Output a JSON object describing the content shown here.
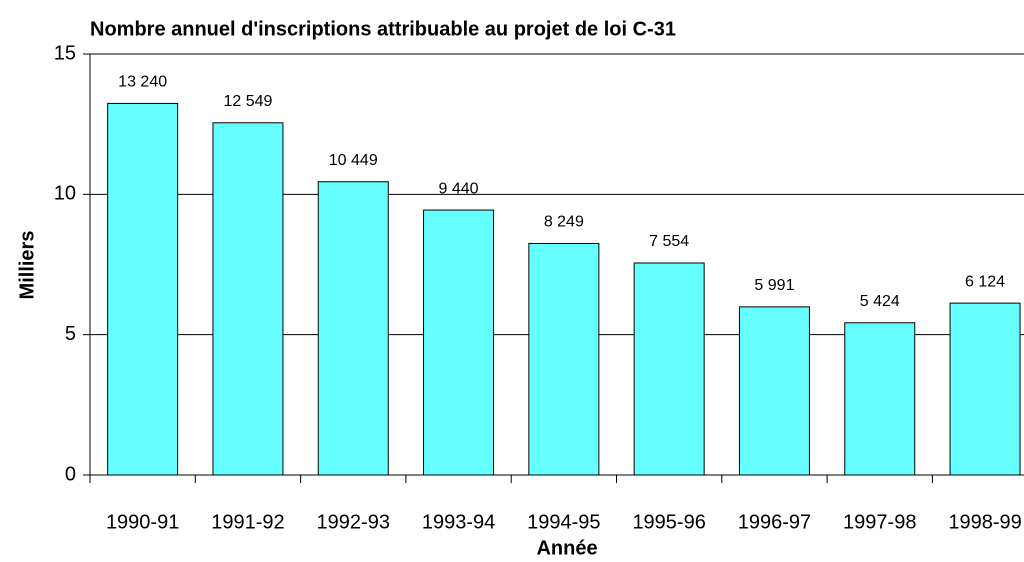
{
  "chart_data": {
    "type": "bar",
    "title": "Nombre annuel d'inscriptions attribuable au projet de loi C-31",
    "x_label": "Année",
    "y_label": "Milliers",
    "categories": [
      "1990-91",
      "1991-92",
      "1992-93",
      "1993-94",
      "1994-95",
      "1995-96",
      "1996-97",
      "1997-98",
      "1998-99"
    ],
    "values": [
      13.24,
      12.549,
      10.449,
      9.44,
      8.249,
      7.554,
      5.991,
      5.424,
      6.124
    ],
    "value_labels": [
      "13 240",
      "12 549",
      "10 449",
      "9 440",
      "8 249",
      "7 554",
      "5 991",
      "5 424",
      "6 124"
    ],
    "color": "#66ffff",
    "ylim": [
      0,
      15
    ],
    "yticks": [
      0,
      5,
      10,
      15
    ],
    "grid": true
  }
}
